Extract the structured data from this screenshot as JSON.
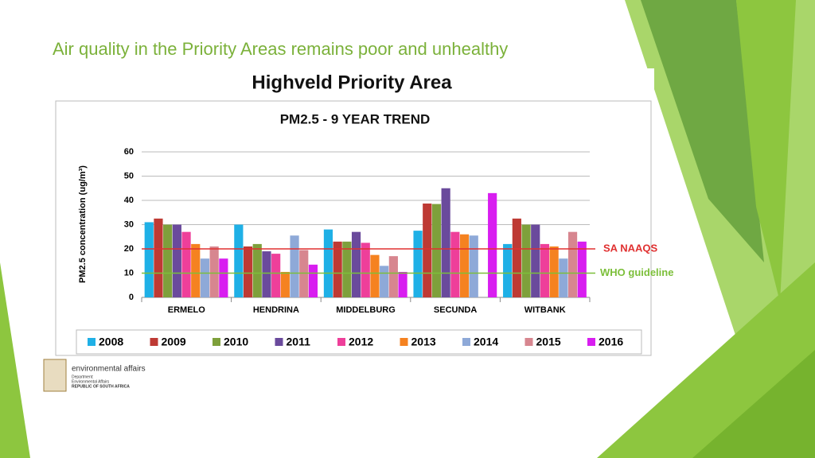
{
  "slide_title": "Air quality in the Priority Areas remains poor and unhealthy",
  "subtitle": "Highveld Priority Area",
  "logo": {
    "name": "environmental affairs",
    "lines": [
      "Department:",
      "Environmental Affairs",
      "REPUBLIC OF SOUTH AFRICA"
    ]
  },
  "chart_data": {
    "type": "bar",
    "title": "PM2.5 - 9 YEAR TREND",
    "y_label": "PM2.5 concentration (ug/m³)",
    "categories": [
      "ERMELO",
      "HENDRINA",
      "MIDDELBURG",
      "SECUNDA",
      "WITBANK"
    ],
    "series": [
      {
        "name": "2008",
        "color": "#1fb0e6",
        "values": [
          31,
          30,
          28,
          27.5,
          22
        ]
      },
      {
        "name": "2009",
        "color": "#be3a34",
        "values": [
          32.5,
          21,
          23,
          38.7,
          32.5
        ]
      },
      {
        "name": "2010",
        "color": "#7ea03b",
        "values": [
          30,
          22,
          23,
          38.5,
          30
        ]
      },
      {
        "name": "2011",
        "color": "#6a4a9c",
        "values": [
          30,
          19,
          27,
          45,
          30
        ]
      },
      {
        "name": "2012",
        "color": "#ee3f9a",
        "values": [
          27,
          18,
          22.5,
          27,
          22
        ]
      },
      {
        "name": "2013",
        "color": "#f58220",
        "values": [
          22,
          10.5,
          17.5,
          26,
          21
        ]
      },
      {
        "name": "2014",
        "color": "#8ea9d8",
        "values": [
          16,
          25.5,
          13,
          25.5,
          16
        ]
      },
      {
        "name": "2015",
        "color": "#d7868f",
        "values": [
          21,
          19.5,
          17,
          null,
          27
        ]
      },
      {
        "name": "2016",
        "color": "#d81ef0",
        "values": [
          16,
          13.5,
          10.5,
          43,
          23
        ]
      }
    ],
    "ylim": [
      0,
      60
    ],
    "yticks": [
      0,
      10,
      20,
      30,
      40,
      50,
      60
    ],
    "grid": true,
    "reference_lines": [
      {
        "value": 20,
        "label": "SA NAAQS",
        "color": "#e03030"
      },
      {
        "value": 10,
        "label": "WHO guideline",
        "color": "#7cbf3a"
      }
    ],
    "legend": "bottom"
  }
}
